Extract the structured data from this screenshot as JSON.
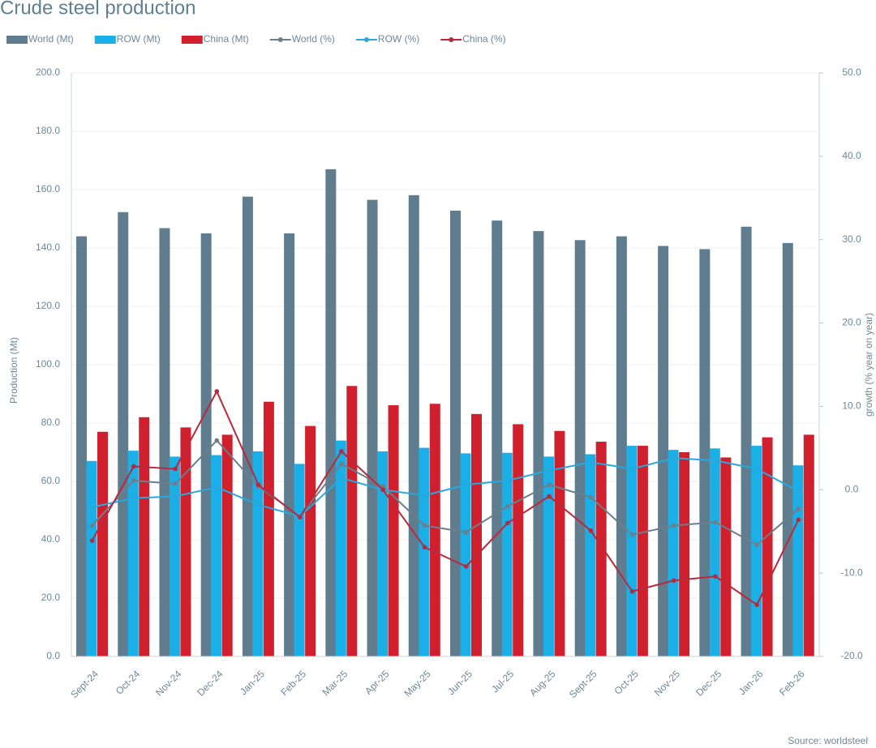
{
  "chart_data": {
    "type": "bar",
    "title": "Crude steel production",
    "source": "Source: worldsteel",
    "y_label": "Production (Mt)",
    "y2_label": "growth (% year on year)",
    "categories": [
      "Sept-24",
      "Oct-24",
      "Nov-24",
      "Dec-24",
      "Jan-25",
      "Feb-25",
      "Mar-25",
      "Apr-25",
      "May-25",
      "Jun-25",
      "Jul-25",
      "Aug-25",
      "Sept-25",
      "Oct-25",
      "Nov-25",
      "Dec-25",
      "Jan-26",
      "Feb-26"
    ],
    "ylim": [
      0,
      200
    ],
    "yticks": [
      {
        "value": 0,
        "label": "0.0"
      },
      {
        "value": 20,
        "label": "20.0"
      },
      {
        "value": 40,
        "label": "40.0"
      },
      {
        "value": 60,
        "label": "60.0"
      },
      {
        "value": 80,
        "label": "80.0"
      },
      {
        "value": 100,
        "label": "100.0"
      },
      {
        "value": 120,
        "label": "120.0"
      },
      {
        "value": 140,
        "label": "140.0"
      },
      {
        "value": 160,
        "label": "160.0"
      },
      {
        "value": 180,
        "label": "180.0"
      },
      {
        "value": 200,
        "label": "200.0"
      }
    ],
    "y2lim": [
      -20,
      50
    ],
    "y2ticks": [
      {
        "value": -20,
        "label": "-20.0"
      },
      {
        "value": -10,
        "label": "-10.0"
      },
      {
        "value": 0,
        "label": "0.0"
      },
      {
        "value": 10,
        "label": "10.0"
      },
      {
        "value": 20,
        "label": "20.0"
      },
      {
        "value": 30,
        "label": "30.0"
      },
      {
        "value": 40,
        "label": "40.0"
      },
      {
        "value": 50,
        "label": "50.0"
      }
    ],
    "grid": true,
    "legend": "top",
    "series": [
      {
        "name": "World (Mt)",
        "type": "bar",
        "color": "#5f7d8e",
        "values": [
          144.0,
          152.3,
          146.8,
          145.0,
          157.6,
          145.0,
          167.0,
          156.5,
          158.1,
          152.8,
          149.4,
          145.8,
          142.7,
          144.0,
          140.7,
          139.6,
          147.3,
          141.7
        ]
      },
      {
        "name": "ROW (Mt)",
        "type": "bar",
        "color": "#1aafe6",
        "values": [
          67.0,
          70.5,
          68.5,
          69.0,
          70.3,
          66.0,
          74.0,
          70.3,
          71.5,
          69.6,
          69.8,
          68.5,
          69.3,
          72.2,
          70.8,
          71.3,
          72.2,
          65.5
        ]
      },
      {
        "name": "China (Mt)",
        "type": "bar",
        "color": "#d0202e",
        "values": [
          77.0,
          82.0,
          78.5,
          76.0,
          87.3,
          79.0,
          92.7,
          86.1,
          86.6,
          83.1,
          79.6,
          77.3,
          73.6,
          72.2,
          70.0,
          68.2,
          75.1,
          76.0
        ]
      },
      {
        "name": "World (%)",
        "type": "line",
        "axis": "y2",
        "color": "#6b7f8c",
        "values": [
          -4.3,
          1.1,
          0.7,
          5.9,
          0.4,
          -3.2,
          3.1,
          0.4,
          -4.3,
          -5.1,
          -2.0,
          0.6,
          -0.9,
          -5.4,
          -4.3,
          -3.9,
          -6.6,
          -2.3
        ]
      },
      {
        "name": "ROW (%)",
        "type": "line",
        "axis": "y2",
        "color": "#25a9df",
        "values": [
          -2.1,
          -1.0,
          -0.8,
          0.3,
          -1.8,
          -3.2,
          1.4,
          0.0,
          -0.7,
          0.6,
          1.1,
          2.3,
          3.3,
          2.5,
          3.8,
          3.5,
          2.5,
          -0.2
        ]
      },
      {
        "name": "China (%)",
        "type": "line",
        "axis": "y2",
        "color": "#b8293d",
        "values": [
          -6.1,
          2.8,
          2.5,
          11.8,
          0.6,
          -3.3,
          4.6,
          0.0,
          -6.9,
          -9.2,
          -4.0,
          -0.8,
          -4.9,
          -12.2,
          -10.9,
          -10.4,
          -13.8,
          -3.6
        ]
      }
    ]
  }
}
